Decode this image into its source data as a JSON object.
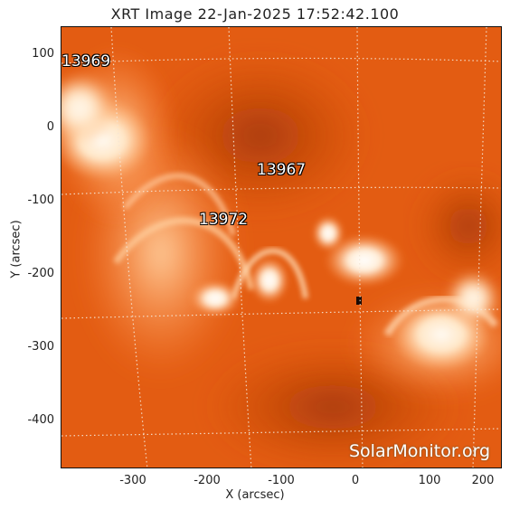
{
  "title": "XRT Image 22-Jan-2025 17:52:42.100",
  "x_axis": {
    "label": "X (arcsec)",
    "ticks": [
      "-300",
      "-200",
      "-100",
      "0",
      "100",
      "200"
    ]
  },
  "y_axis": {
    "label": "Y (arcsec)",
    "ticks": [
      "100",
      "0",
      "-100",
      "-200",
      "-300",
      "-400"
    ]
  },
  "active_regions": [
    {
      "id": "13969"
    },
    {
      "id": "13967"
    },
    {
      "id": "13972"
    }
  ],
  "watermark": "SolarMonitor.org",
  "colors": {
    "background_orange": "#e05a10",
    "bright": "#fff6ea",
    "dark_orange": "#b8400c",
    "grid": "#f3e5d8"
  }
}
